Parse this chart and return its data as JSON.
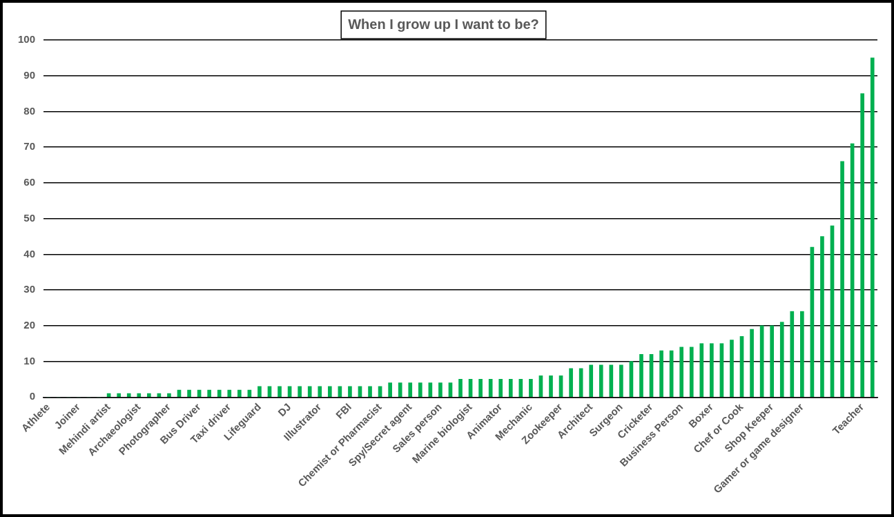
{
  "chart_data": {
    "type": "bar",
    "title": "When I grow up I want to be?",
    "categories": [
      "Athlete",
      null,
      null,
      "Joiner",
      null,
      null,
      "Mehindi artist",
      null,
      null,
      "Archaeologist",
      null,
      null,
      "Photographer",
      null,
      null,
      "Bus Driver",
      null,
      null,
      "Taxi driver",
      null,
      null,
      "Lifeguard",
      null,
      null,
      "DJ",
      null,
      null,
      "Illustrator",
      null,
      null,
      "FBI",
      null,
      null,
      "Chemist or Pharmacist",
      null,
      null,
      "Spy/Secret agent",
      null,
      null,
      "Sales person",
      null,
      null,
      "Marine biologist",
      null,
      null,
      "Animator",
      null,
      null,
      "Mechanic",
      null,
      null,
      "Zookeeper",
      null,
      null,
      "Architect",
      null,
      null,
      "Surgeon",
      null,
      null,
      "Cricketer",
      null,
      null,
      "Business Person",
      null,
      null,
      "Boxer",
      null,
      null,
      "Chef or Cook",
      null,
      null,
      "Shop Keeper",
      null,
      null,
      "Gamer or game designer",
      null,
      null,
      null,
      null,
      null,
      "Teacher",
      null
    ],
    "values": [
      0,
      0,
      0,
      0,
      0,
      0,
      1,
      1,
      1,
      1,
      1,
      1,
      1,
      2,
      2,
      2,
      2,
      2,
      2,
      2,
      2,
      3,
      3,
      3,
      3,
      3,
      3,
      3,
      3,
      3,
      3,
      3,
      3,
      3,
      4,
      4,
      4,
      4,
      4,
      4,
      4,
      5,
      5,
      5,
      5,
      5,
      5,
      5,
      5,
      6,
      6,
      6,
      8,
      8,
      9,
      9,
      9,
      9,
      10,
      12,
      12,
      13,
      13,
      14,
      14,
      15,
      15,
      15,
      16,
      17,
      19,
      20,
      20,
      21,
      24,
      24,
      42,
      45,
      48,
      66,
      71,
      85,
      95
    ],
    "color": "#00b050",
    "ylim": [
      0,
      100
    ],
    "yticks": [
      0,
      10,
      20,
      30,
      40,
      50,
      60,
      70,
      80,
      90,
      100
    ],
    "grid": "y"
  }
}
